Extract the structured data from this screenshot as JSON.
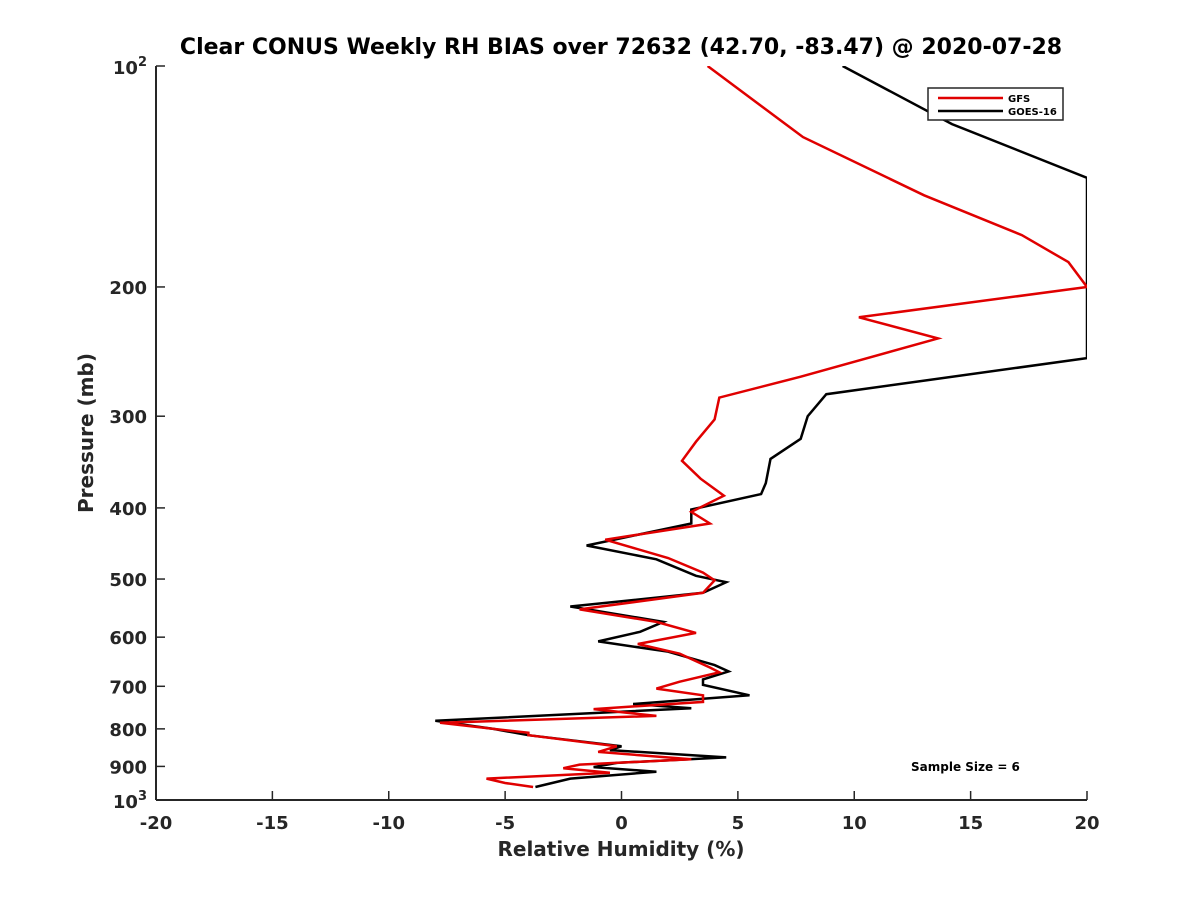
{
  "chart_data": {
    "type": "line",
    "title": "Clear CONUS Weekly RH BIAS over 72632 (42.70, -83.47) @ 2020-07-28",
    "xlabel": "Relative Humidity (%)",
    "ylabel": "Pressure (mb)",
    "xlim": [
      -20,
      20
    ],
    "ylim": [
      100,
      1000
    ],
    "yscale": "log",
    "y_reversed": true,
    "x_ticks": [
      "-20",
      "-15",
      "-10",
      "-5",
      "0",
      "5",
      "10",
      "15",
      "20"
    ],
    "y_ticks": [
      "200",
      "300",
      "400",
      "500",
      "600",
      "700",
      "800",
      "900"
    ],
    "y_tick_top": {
      "base": "10",
      "exp": "2"
    },
    "y_tick_bottom": {
      "base": "10",
      "exp": "3"
    },
    "grid": false,
    "legend_position": "top-right",
    "annotation": "Sample Size = 6",
    "series": [
      {
        "name": "GFS",
        "color": "#e00000",
        "points": [
          [
            3.7,
            100
          ],
          [
            7.8,
            125
          ],
          [
            13.0,
            150
          ],
          [
            17.2,
            170
          ],
          [
            19.2,
            185
          ],
          [
            20.0,
            200
          ],
          [
            10.2,
            220
          ],
          [
            13.6,
            235
          ],
          [
            7.7,
            265
          ],
          [
            4.2,
            283
          ],
          [
            4.0,
            303
          ],
          [
            3.2,
            325
          ],
          [
            2.6,
            345
          ],
          [
            3.4,
            365
          ],
          [
            4.4,
            385
          ],
          [
            3.0,
            405
          ],
          [
            3.8,
            420
          ],
          [
            -0.7,
            442
          ],
          [
            2.0,
            468
          ],
          [
            3.5,
            490
          ],
          [
            4.0,
            502
          ],
          [
            3.5,
            522
          ],
          [
            -1.8,
            550
          ],
          [
            1.5,
            572
          ],
          [
            3.2,
            592
          ],
          [
            0.7,
            613
          ],
          [
            2.5,
            632
          ],
          [
            3.8,
            660
          ],
          [
            4.2,
            670
          ],
          [
            2.5,
            690
          ],
          [
            1.5,
            705
          ],
          [
            3.5,
            720
          ],
          [
            3.5,
            735
          ],
          [
            -1.2,
            752
          ],
          [
            1.5,
            768
          ],
          [
            -7.8,
            785
          ],
          [
            -4.0,
            810
          ],
          [
            -4.0,
            816
          ],
          [
            -0.2,
            845
          ],
          [
            -1.0,
            860
          ],
          [
            3.0,
            880
          ],
          [
            -1.8,
            895
          ],
          [
            -2.5,
            905
          ],
          [
            -0.5,
            918
          ],
          [
            -5.8,
            935
          ],
          [
            -5.0,
            948
          ],
          [
            -3.8,
            960
          ]
        ]
      },
      {
        "name": "GOES-16",
        "color": "#000000",
        "points": [
          [
            9.5,
            100
          ],
          [
            14.2,
            120
          ],
          [
            20.0,
            142
          ],
          [
            20.0,
            250
          ],
          [
            8.8,
            280
          ],
          [
            8.0,
            300
          ],
          [
            7.7,
            322
          ],
          [
            6.4,
            343
          ],
          [
            6.2,
            370
          ],
          [
            6.0,
            383
          ],
          [
            3.0,
            402
          ],
          [
            3.0,
            420
          ],
          [
            -1.5,
            450
          ],
          [
            1.5,
            470
          ],
          [
            3.2,
            495
          ],
          [
            4.5,
            505
          ],
          [
            3.5,
            522
          ],
          [
            -2.2,
            545
          ],
          [
            1.8,
            572
          ],
          [
            0.8,
            590
          ],
          [
            -1.0,
            608
          ],
          [
            2.0,
            628
          ],
          [
            4.0,
            655
          ],
          [
            4.6,
            668
          ],
          [
            3.5,
            685
          ],
          [
            3.5,
            697
          ],
          [
            5.5,
            720
          ],
          [
            0.5,
            740
          ],
          [
            3.0,
            750
          ],
          [
            -8.0,
            780
          ],
          [
            -5.5,
            800
          ],
          [
            -4.0,
            816
          ],
          [
            0.0,
            845
          ],
          [
            -0.5,
            855
          ],
          [
            4.5,
            875
          ],
          [
            -0.2,
            890
          ],
          [
            -1.2,
            902
          ],
          [
            1.5,
            915
          ],
          [
            -2.2,
            935
          ],
          [
            -3.7,
            960
          ]
        ]
      }
    ]
  }
}
